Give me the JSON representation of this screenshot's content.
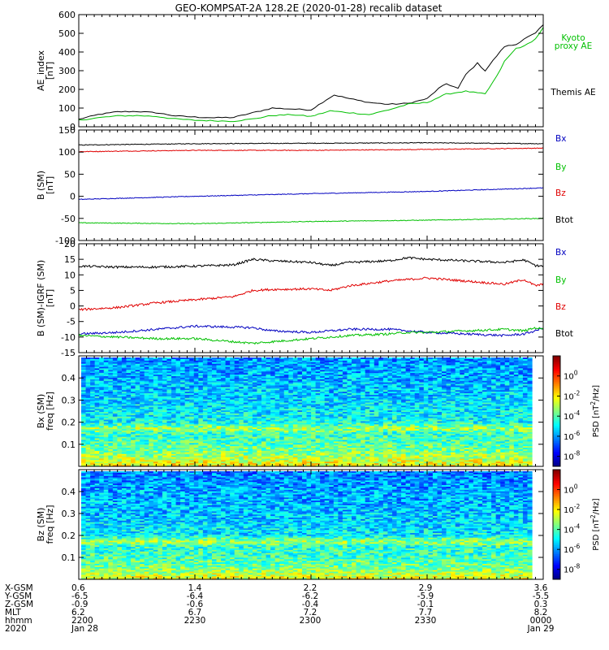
{
  "title": "GEO-KOMPSAT-2A 128.2E (2020-01-28) recalib dataset",
  "panels": [
    {
      "id": "ae",
      "ylabel": "AE_index [nT]",
      "ylabel_lines": [
        "AE_index",
        "[nT]"
      ],
      "yrange": [
        0,
        600
      ],
      "yticks": [
        0,
        100,
        200,
        300,
        400,
        500,
        600
      ],
      "legend": [
        {
          "text": "Kyoto proxy AE",
          "lines": [
            "Kyoto",
            "proxy AE"
          ],
          "color": "#00c000"
        },
        {
          "text": "Themis AE",
          "lines": [
            "Themis AE"
          ],
          "color": "#000000"
        }
      ]
    },
    {
      "id": "bsm",
      "ylabel": "B (SM) [nT]",
      "ylabel_lines": [
        "B (SM)",
        "[nT]"
      ],
      "yrange": [
        -100,
        150
      ],
      "yticks": [
        -100,
        -50,
        0,
        50,
        100,
        150
      ],
      "legend": [
        {
          "text": "Bx",
          "color": "#0000c0"
        },
        {
          "text": "By",
          "color": "#00c000"
        },
        {
          "text": "Bz",
          "color": "#e00000"
        },
        {
          "text": "Btot",
          "color": "#000000"
        }
      ]
    },
    {
      "id": "bigrf",
      "ylabel": "B (SM)-IGRF (SM) [nT]",
      "ylabel_lines": [
        "B (SM)-IGRF (SM)",
        "[nT]"
      ],
      "yrange": [
        -15,
        20
      ],
      "yticks": [
        -15,
        -10,
        -5,
        0,
        5,
        10,
        15,
        20
      ],
      "legend": [
        {
          "text": "Bx",
          "color": "#0000c0"
        },
        {
          "text": "By",
          "color": "#00c000"
        },
        {
          "text": "Bz",
          "color": "#e00000"
        },
        {
          "text": "Btot",
          "color": "#000000"
        }
      ]
    },
    {
      "id": "specbx",
      "ylabel": "Bx (SM) freq [Hz]",
      "ylabel_lines": [
        "Bx (SM)",
        "freq [Hz]"
      ],
      "yrange": [
        0,
        0.5
      ],
      "yticks": [
        0.1,
        0.2,
        0.3,
        0.4
      ],
      "ytick_labels": [
        "0.1",
        "0.2",
        "0.3",
        "0.4"
      ]
    },
    {
      "id": "specbz",
      "ylabel": "Bz (SM) freq [Hz]",
      "ylabel_lines": [
        "Bz (SM)",
        "freq [Hz]"
      ],
      "yrange": [
        0,
        0.5
      ],
      "yticks": [
        0.1,
        0.2,
        0.3,
        0.4
      ],
      "ytick_labels": [
        "0.1",
        "0.2",
        "0.3",
        "0.4"
      ]
    }
  ],
  "colorbar": {
    "label": "PSD [nT²/Hz]",
    "label_base": "PSD [nT",
    "label_sup": "2",
    "label_tail": "/Hz]",
    "range_log10": [
      -9,
      2
    ],
    "ticks": [
      {
        "base": "10",
        "exp": "0",
        "v": 0
      },
      {
        "base": "10",
        "exp": "-2",
        "v": -2
      },
      {
        "base": "10",
        "exp": "-4",
        "v": -4
      },
      {
        "base": "10",
        "exp": "-6",
        "v": -6
      }
    ],
    "ticks_bottom": [
      {
        "base": "10",
        "exp": "-8",
        "v": -8
      }
    ]
  },
  "footer": {
    "row_labels": [
      "X-GSM",
      "Y-GSM",
      "Z-GSM",
      "MLT",
      "hhmm",
      "2020"
    ],
    "columns": [
      [
        "0.6",
        "-6.5",
        "-0.9",
        "6.2",
        "2200",
        "Jan 28"
      ],
      [
        "1.4",
        "-6.4",
        "-0.6",
        "6.7",
        "2230",
        ""
      ],
      [
        "2.2",
        "-6.2",
        "-0.4",
        "7.2",
        "2300",
        ""
      ],
      [
        "2.9",
        "-5.9",
        "-0.1",
        "7.7",
        "2330",
        ""
      ],
      [
        "3.6",
        "-5.5",
        "0.3",
        "8.2",
        "0000",
        "Jan 29"
      ]
    ]
  },
  "chart_data": [
    {
      "type": "line",
      "x_unit": "UT minutes after 22:00 (2020-01-28)",
      "xlim": [
        0,
        120
      ],
      "ylabel": "AE_index [nT]",
      "ylim": [
        0,
        600
      ],
      "series": [
        {
          "name": "Themis AE",
          "color": "#000000",
          "x": [
            0,
            5,
            10,
            15,
            20,
            25,
            30,
            35,
            40,
            45,
            50,
            55,
            60,
            64,
            66,
            70,
            75,
            80,
            85,
            90,
            93,
            95,
            98,
            100,
            103,
            105,
            108,
            110,
            113,
            115,
            118,
            120
          ],
          "y": [
            40,
            65,
            80,
            82,
            75,
            58,
            52,
            48,
            50,
            75,
            100,
            95,
            90,
            145,
            170,
            150,
            130,
            120,
            125,
            150,
            205,
            230,
            205,
            280,
            340,
            300,
            380,
            430,
            440,
            470,
            500,
            545
          ]
        },
        {
          "name": "Kyoto proxy AE",
          "color": "#00c000",
          "x": [
            0,
            5,
            10,
            15,
            20,
            25,
            30,
            35,
            40,
            45,
            50,
            55,
            60,
            65,
            70,
            75,
            80,
            85,
            90,
            95,
            100,
            105,
            108,
            110,
            113,
            115,
            118,
            120
          ],
          "y": [
            35,
            48,
            58,
            60,
            55,
            42,
            35,
            32,
            30,
            42,
            60,
            65,
            55,
            85,
            75,
            65,
            90,
            120,
            130,
            175,
            190,
            175,
            270,
            350,
            420,
            430,
            470,
            530
          ]
        }
      ]
    },
    {
      "type": "line",
      "x_unit": "UT minutes after 22:00 (2020-01-28)",
      "xlim": [
        0,
        120
      ],
      "ylabel": "B (SM) [nT]",
      "ylim": [
        -100,
        150
      ],
      "series": [
        {
          "name": "Btot",
          "color": "#000000",
          "x": [
            0,
            30,
            60,
            90,
            120
          ],
          "y": [
            116,
            119,
            120,
            121,
            119
          ]
        },
        {
          "name": "Bz",
          "color": "#e00000",
          "x": [
            0,
            30,
            60,
            90,
            120
          ],
          "y": [
            101,
            104,
            104,
            106,
            109
          ]
        },
        {
          "name": "Bx",
          "color": "#0000c0",
          "x": [
            0,
            30,
            60,
            90,
            120
          ],
          "y": [
            -7,
            0,
            6,
            11,
            19
          ]
        },
        {
          "name": "By",
          "color": "#00c000",
          "x": [
            0,
            30,
            60,
            90,
            120
          ],
          "y": [
            -60,
            -62,
            -57,
            -54,
            -50
          ]
        }
      ]
    },
    {
      "type": "line",
      "x_unit": "UT minutes after 22:00 (2020-01-28)",
      "xlim": [
        0,
        120
      ],
      "ylabel": "B (SM)-IGRF (SM) [nT]",
      "ylim": [
        -15,
        20
      ],
      "series": [
        {
          "name": "Btot",
          "color": "#000000",
          "x": [
            0,
            10,
            20,
            30,
            40,
            45,
            50,
            60,
            65,
            70,
            80,
            85,
            90,
            100,
            110,
            115,
            118,
            120
          ],
          "y": [
            12.8,
            12.5,
            12.5,
            12.8,
            13.2,
            15,
            14.5,
            14,
            13,
            14,
            14.5,
            15.5,
            15,
            14.5,
            14,
            14.8,
            13,
            12.8
          ]
        },
        {
          "name": "Bz",
          "color": "#e00000",
          "x": [
            0,
            10,
            20,
            30,
            40,
            45,
            50,
            60,
            65,
            70,
            80,
            85,
            90,
            100,
            110,
            115,
            118,
            120
          ],
          "y": [
            -1.2,
            -0.5,
            1,
            2,
            3,
            5,
            5.3,
            5.5,
            5,
            6.5,
            8,
            8.5,
            9,
            8,
            7,
            8.5,
            6.5,
            7
          ]
        },
        {
          "name": "Bx",
          "color": "#0000c0",
          "x": [
            0,
            10,
            20,
            30,
            40,
            45,
            50,
            60,
            65,
            70,
            80,
            85,
            90,
            100,
            110,
            115,
            118,
            120
          ],
          "y": [
            -9,
            -8.5,
            -7.5,
            -6.5,
            -6.8,
            -7,
            -8,
            -8.5,
            -8,
            -7.5,
            -7.5,
            -8,
            -8.5,
            -9,
            -9.5,
            -9,
            -8,
            -7
          ]
        },
        {
          "name": "By",
          "color": "#00c000",
          "x": [
            0,
            10,
            20,
            30,
            40,
            45,
            50,
            60,
            65,
            70,
            80,
            85,
            90,
            100,
            110,
            115,
            118,
            120
          ],
          "y": [
            -9.5,
            -10,
            -10.5,
            -10.5,
            -11.5,
            -12,
            -11.5,
            -10.5,
            -10,
            -9.5,
            -9,
            -8.5,
            -8.5,
            -8,
            -7.5,
            -8,
            -7,
            -7.5
          ]
        }
      ]
    },
    {
      "type": "heatmap",
      "x_unit": "UT minutes after 22:00 (2020-01-28)",
      "xlim": [
        0,
        115
      ],
      "ylabel": "Bx (SM) freq [Hz]",
      "ylim": [
        0,
        0.5
      ],
      "z_label": "PSD [nT²/Hz]",
      "z_scale": "log10",
      "zlim_log10": [
        -9,
        2
      ],
      "profile_freq_hz": [
        0.01,
        0.05,
        0.1,
        0.15,
        0.17,
        0.2,
        0.3,
        0.4,
        0.49
      ],
      "profile_log10_psd": [
        -2.2,
        -3.2,
        -4.0,
        -4.3,
        -3.0,
        -4.8,
        -5.3,
        -5.7,
        -6.0
      ]
    },
    {
      "type": "heatmap",
      "x_unit": "UT minutes after 22:00 (2020-01-28)",
      "xlim": [
        0,
        115
      ],
      "ylabel": "Bz (SM) freq [Hz]",
      "ylim": [
        0,
        0.5
      ],
      "z_label": "PSD [nT²/Hz]",
      "z_scale": "log10",
      "zlim_log10": [
        -9,
        2
      ],
      "profile_freq_hz": [
        0.01,
        0.05,
        0.1,
        0.15,
        0.17,
        0.2,
        0.3,
        0.4,
        0.49
      ],
      "profile_log10_psd": [
        -2.5,
        -3.5,
        -4.2,
        -4.4,
        -3.0,
        -5.0,
        -5.5,
        -5.8,
        -6.2
      ]
    }
  ]
}
